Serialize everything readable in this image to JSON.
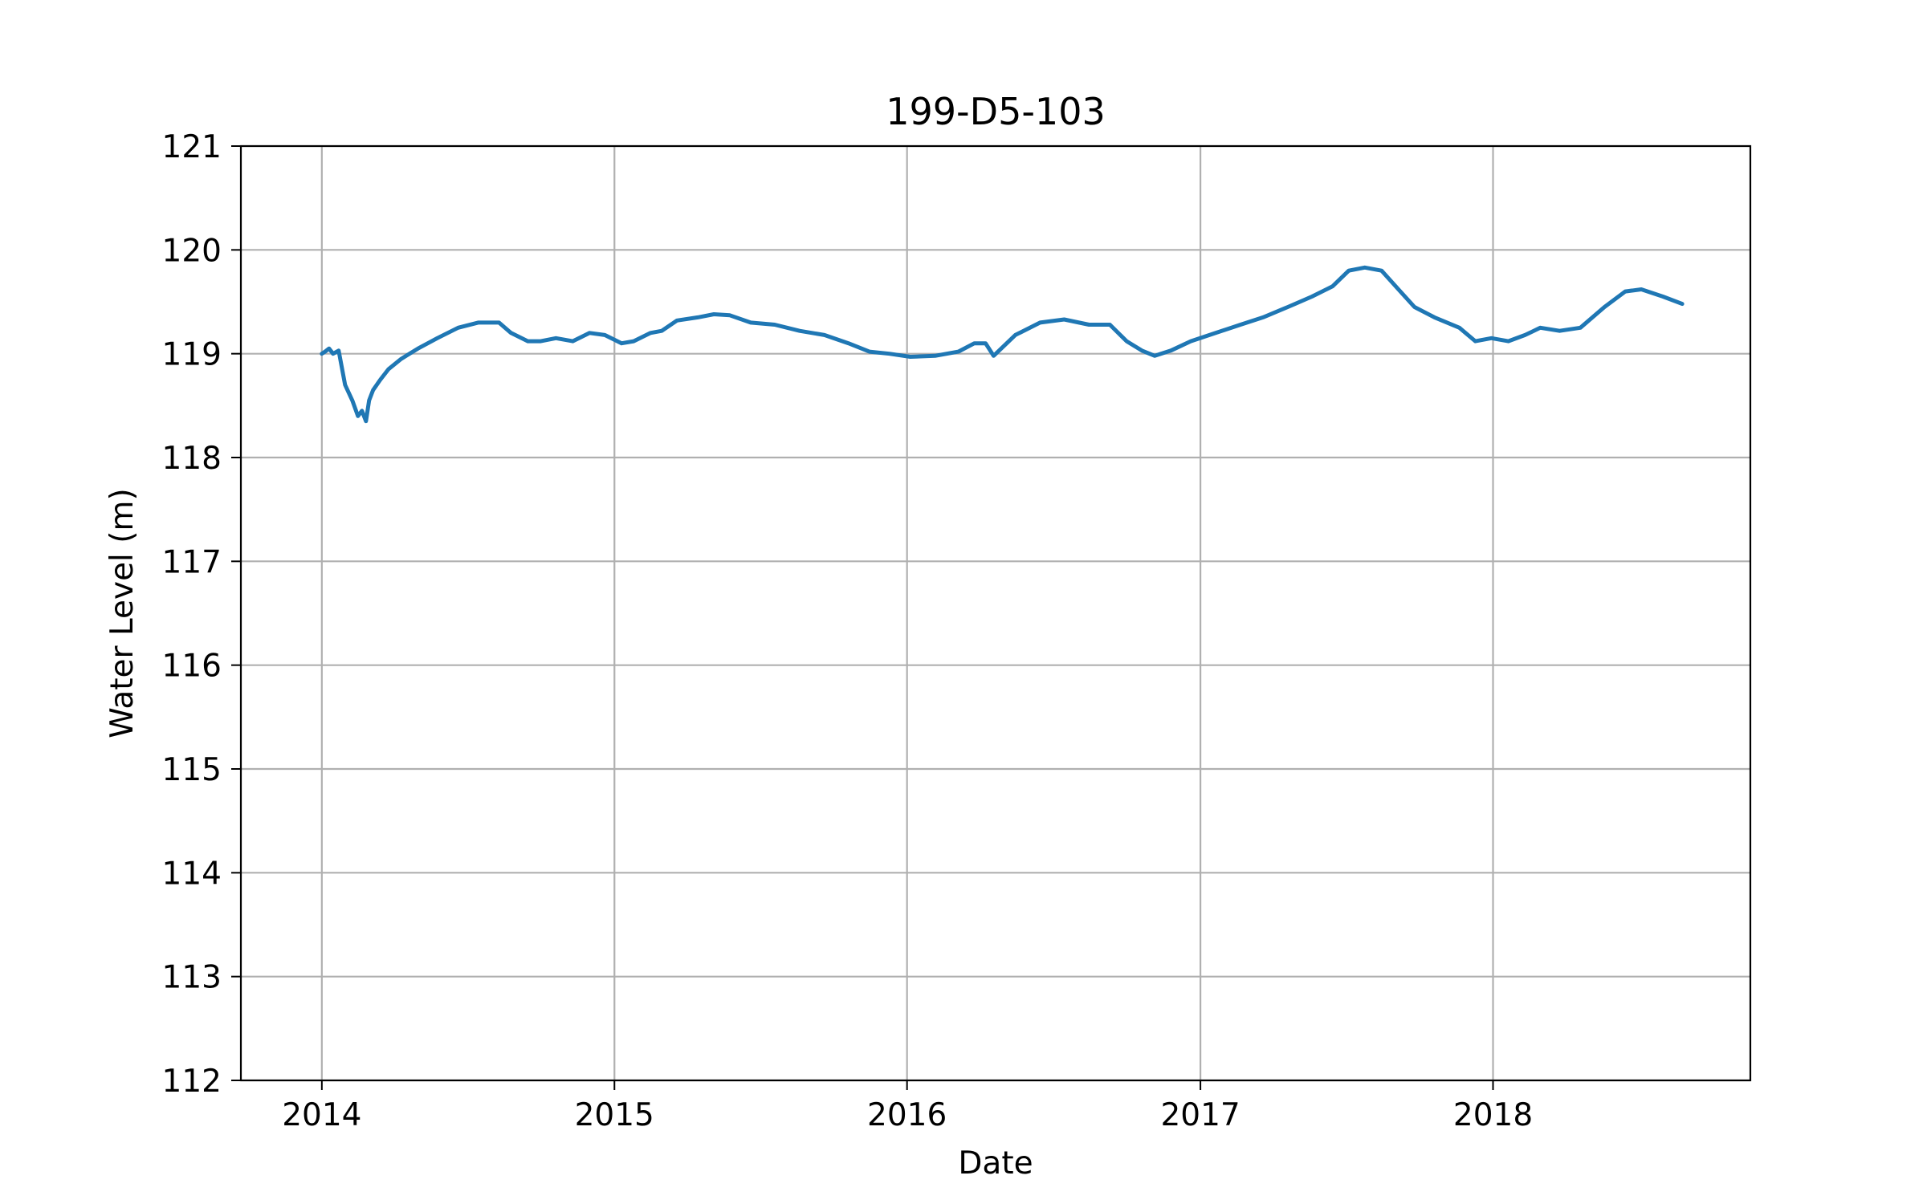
{
  "chart_data": {
    "type": "line",
    "title": "199-D5-103",
    "xlabel": "Date",
    "ylabel": "Water Level (m)",
    "x_ticks": [
      "2014",
      "2015",
      "2016",
      "2017",
      "2018"
    ],
    "y_ticks": [
      "112",
      "113",
      "114",
      "115",
      "116",
      "117",
      "118",
      "119",
      "120",
      "121"
    ],
    "xlim": [
      "2013-09-22",
      "2018-11-18"
    ],
    "ylim": [
      112,
      121
    ],
    "grid": true,
    "colors": {
      "series": "#1f77b4",
      "grid": "#b0b0b0",
      "axes": "#000000"
    },
    "series": [
      {
        "x": [
          "2014-01-01",
          "2014-01-05",
          "2014-01-10",
          "2014-01-15",
          "2014-01-22",
          "2014-01-30",
          "2014-02-08",
          "2014-02-15",
          "2014-02-20",
          "2014-02-25",
          "2014-03-01",
          "2014-03-06",
          "2014-03-15",
          "2014-03-25",
          "2014-04-10",
          "2014-05-01",
          "2014-05-25",
          "2014-06-20",
          "2014-07-15",
          "2014-08-10",
          "2014-08-25",
          "2014-09-15",
          "2014-10-01",
          "2014-10-20",
          "2014-11-10",
          "2014-12-01",
          "2014-12-20",
          "2015-01-10",
          "2015-01-25",
          "2015-02-15",
          "2015-03-01",
          "2015-03-20",
          "2015-04-15",
          "2015-05-05",
          "2015-05-25",
          "2015-06-20",
          "2015-07-20",
          "2015-08-20",
          "2015-09-20",
          "2015-10-20",
          "2015-11-15",
          "2015-12-10",
          "2016-01-05",
          "2016-02-05",
          "2016-03-05",
          "2016-03-25",
          "2016-04-08",
          "2016-04-18",
          "2016-05-15",
          "2016-06-15",
          "2016-07-15",
          "2016-08-15",
          "2016-09-10",
          "2016-10-01",
          "2016-10-20",
          "2016-11-05",
          "2016-11-25",
          "2016-12-20",
          "2017-01-20",
          "2017-02-20",
          "2017-03-20",
          "2017-04-20",
          "2017-05-20",
          "2017-06-15",
          "2017-07-05",
          "2017-07-25",
          "2017-08-15",
          "2017-09-05",
          "2017-09-25",
          "2017-10-20",
          "2017-11-20",
          "2017-12-10",
          "2017-12-30",
          "2018-01-20",
          "2018-02-10",
          "2018-03-01",
          "2018-03-25",
          "2018-04-20",
          "2018-05-20",
          "2018-06-15",
          "2018-07-05",
          "2018-08-01",
          "2018-08-25"
        ],
        "y": [
          119.0,
          119.02,
          119.05,
          119.0,
          119.03,
          118.7,
          118.55,
          118.4,
          118.45,
          118.35,
          118.55,
          118.65,
          118.75,
          118.85,
          118.95,
          119.05,
          119.15,
          119.25,
          119.3,
          119.3,
          119.2,
          119.12,
          119.12,
          119.15,
          119.12,
          119.2,
          119.18,
          119.1,
          119.12,
          119.2,
          119.22,
          119.32,
          119.35,
          119.38,
          119.37,
          119.3,
          119.28,
          119.22,
          119.18,
          119.1,
          119.02,
          119.0,
          118.97,
          118.98,
          119.02,
          119.1,
          119.1,
          118.98,
          119.18,
          119.3,
          119.33,
          119.28,
          119.28,
          119.12,
          119.03,
          118.98,
          119.03,
          119.12,
          119.2,
          119.28,
          119.35,
          119.45,
          119.55,
          119.65,
          119.8,
          119.83,
          119.8,
          119.62,
          119.45,
          119.35,
          119.25,
          119.12,
          119.15,
          119.12,
          119.18,
          119.25,
          119.22,
          119.25,
          119.45,
          119.6,
          119.62,
          119.55,
          119.48
        ]
      }
    ]
  }
}
